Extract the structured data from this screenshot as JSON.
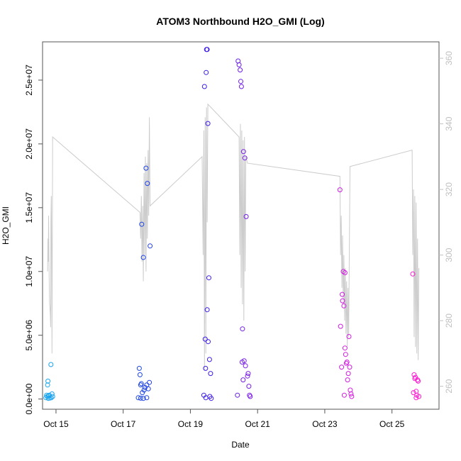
{
  "chart_data": {
    "type": "scatter",
    "title": "ATOM3 Northbound H2O_GMI (Log)",
    "xlabel": "Date",
    "ylabel": "H2O_GMI",
    "xlim": [
      14.6,
      26.4
    ],
    "ylim": [
      -800000.0,
      28000000.0
    ],
    "y2lim": [
      253,
      365
    ],
    "x_ticks": [
      {
        "value": 15,
        "label": "Oct 15"
      },
      {
        "value": 17,
        "label": "Oct 17"
      },
      {
        "value": 19,
        "label": "Oct 19"
      },
      {
        "value": 21,
        "label": "Oct 21"
      },
      {
        "value": 23,
        "label": "Oct 23"
      },
      {
        "value": 25,
        "label": "Oct 25"
      }
    ],
    "y_ticks": [
      {
        "value": 0,
        "label": "0.0e+00"
      },
      {
        "value": 5000000,
        "label": "5.0e+06"
      },
      {
        "value": 10000000,
        "label": "1.0e+07"
      },
      {
        "value": 15000000,
        "label": "1.5e+07"
      },
      {
        "value": 20000000,
        "label": "2.0e+07"
      },
      {
        "value": 25000000,
        "label": "2.5e+07"
      }
    ],
    "y2_ticks": [
      {
        "value": 260,
        "label": "260"
      },
      {
        "value": 280,
        "label": "280"
      },
      {
        "value": 300,
        "label": "300"
      },
      {
        "value": 320,
        "label": "320"
      },
      {
        "value": 340,
        "label": "340"
      },
      {
        "value": 360,
        "label": "360"
      }
    ],
    "grid": false,
    "colors": {
      "line": "#cccccc",
      "axis": "#555555",
      "right_axis": "#c0c0c0",
      "point_gradient": [
        "#1aa8f0",
        "#1a55e6",
        "#2b1ee8",
        "#9a1ee8",
        "#d01ee0",
        "#ff1ad0"
      ]
    },
    "series": [
      {
        "kind": "line",
        "axis": "right",
        "points": [
          [
            14.75,
            295
          ],
          [
            14.76,
            305
          ],
          [
            14.77,
            298
          ],
          [
            14.78,
            312
          ],
          [
            14.79,
            300
          ],
          [
            14.8,
            290
          ],
          [
            14.81,
            285
          ],
          [
            14.82,
            284
          ],
          [
            14.83,
            282
          ],
          [
            14.84,
            278
          ],
          [
            14.85,
            310
          ],
          [
            14.86,
            318
          ],
          [
            14.87,
            300
          ],
          [
            14.88,
            270
          ],
          [
            14.9,
            336
          ],
          [
            17.5,
            313
          ],
          [
            17.52,
            305
          ],
          [
            17.54,
            318
          ],
          [
            17.56,
            298
          ],
          [
            17.58,
            315
          ],
          [
            17.6,
            292
          ],
          [
            17.62,
            325
          ],
          [
            17.64,
            300
          ],
          [
            17.66,
            330
          ],
          [
            17.68,
            295
          ],
          [
            17.7,
            328
          ],
          [
            17.72,
            305
          ],
          [
            17.74,
            332
          ],
          [
            17.76,
            312
          ],
          [
            17.78,
            342
          ],
          [
            17.8,
            315
          ],
          [
            19.35,
            330
          ],
          [
            19.38,
            300
          ],
          [
            19.4,
            338
          ],
          [
            19.42,
            265
          ],
          [
            19.44,
            342
          ],
          [
            19.46,
            270
          ],
          [
            19.48,
            345
          ],
          [
            19.5,
            310
          ],
          [
            19.52,
            346
          ],
          [
            20.45,
            336
          ],
          [
            20.47,
            300
          ],
          [
            20.49,
            340
          ],
          [
            20.51,
            290
          ],
          [
            20.53,
            338
          ],
          [
            20.55,
            285
          ],
          [
            20.57,
            335
          ],
          [
            20.59,
            280
          ],
          [
            20.61,
            336
          ],
          [
            20.63,
            295
          ],
          [
            20.65,
            330
          ],
          [
            20.7,
            328
          ],
          [
            23.45,
            324
          ],
          [
            23.47,
            300
          ],
          [
            23.49,
            312
          ],
          [
            23.51,
            290
          ],
          [
            23.53,
            306
          ],
          [
            23.55,
            285
          ],
          [
            23.57,
            300
          ],
          [
            23.59,
            280
          ],
          [
            23.61,
            296
          ],
          [
            23.63,
            276
          ],
          [
            23.65,
            292
          ],
          [
            23.67,
            272
          ],
          [
            23.69,
            290
          ],
          [
            23.71,
            275
          ],
          [
            23.75,
            327
          ],
          [
            25.6,
            332
          ],
          [
            25.62,
            300
          ],
          [
            25.64,
            320
          ],
          [
            25.66,
            275
          ],
          [
            25.68,
            318
          ],
          [
            25.7,
            272
          ],
          [
            25.72,
            316
          ],
          [
            25.74,
            270
          ],
          [
            25.76,
            305
          ],
          [
            25.78,
            268
          ],
          [
            25.8,
            296
          ]
        ]
      },
      {
        "kind": "scatter",
        "axis": "left",
        "points": [
          [
            14.7,
            100000
          ],
          [
            14.72,
            300000
          ],
          [
            14.74,
            200000
          ],
          [
            14.75,
            1100000
          ],
          [
            14.76,
            1400000
          ],
          [
            14.77,
            50000
          ],
          [
            14.78,
            250000
          ],
          [
            14.8,
            300000
          ],
          [
            14.82,
            80000
          ],
          [
            14.85,
            2700000
          ],
          [
            14.86,
            100000
          ],
          [
            14.88,
            400000
          ],
          [
            14.9,
            200000
          ],
          [
            17.45,
            100000
          ],
          [
            17.48,
            2400000
          ],
          [
            17.5,
            1900000
          ],
          [
            17.52,
            1100000
          ],
          [
            17.54,
            1200000
          ],
          [
            17.55,
            13700000
          ],
          [
            17.57,
            500000
          ],
          [
            17.6,
            11100000
          ],
          [
            17.62,
            700000
          ],
          [
            17.65,
            900000
          ],
          [
            17.68,
            18100000
          ],
          [
            17.7,
            1100000
          ],
          [
            17.72,
            16900000
          ],
          [
            17.75,
            800000
          ],
          [
            17.78,
            1300000
          ],
          [
            17.8,
            12000000
          ],
          [
            17.52,
            70000
          ],
          [
            17.6,
            50000
          ],
          [
            17.7,
            100000
          ],
          [
            19.4,
            300000
          ],
          [
            19.42,
            24500000
          ],
          [
            19.44,
            4700000
          ],
          [
            19.45,
            2400000
          ],
          [
            19.46,
            100000
          ],
          [
            19.47,
            25600000
          ],
          [
            19.48,
            27400000
          ],
          [
            19.5,
            27400000
          ],
          [
            19.5,
            7000000
          ],
          [
            19.52,
            21600000
          ],
          [
            19.53,
            4500000
          ],
          [
            19.55,
            9500000
          ],
          [
            19.57,
            3100000
          ],
          [
            19.6,
            2000000
          ],
          [
            19.58,
            200000
          ],
          [
            19.62,
            50000
          ],
          [
            20.4,
            300000
          ],
          [
            20.42,
            26500000
          ],
          [
            20.45,
            26200000
          ],
          [
            20.48,
            25800000
          ],
          [
            20.5,
            24900000
          ],
          [
            20.52,
            24500000
          ],
          [
            20.54,
            2900000
          ],
          [
            20.55,
            5500000
          ],
          [
            20.57,
            1500000
          ],
          [
            20.58,
            19400000
          ],
          [
            20.6,
            3000000
          ],
          [
            20.62,
            18900000
          ],
          [
            20.64,
            2600000
          ],
          [
            20.66,
            14300000
          ],
          [
            20.7,
            1800000
          ],
          [
            20.72,
            2000000
          ],
          [
            20.74,
            1000000
          ],
          [
            20.76,
            300000
          ],
          [
            20.78,
            200000
          ],
          [
            23.45,
            16400000
          ],
          [
            23.47,
            5700000
          ],
          [
            23.5,
            2500000
          ],
          [
            23.52,
            8200000
          ],
          [
            23.53,
            7700000
          ],
          [
            23.55,
            10000000
          ],
          [
            23.57,
            7300000
          ],
          [
            23.6,
            4000000
          ],
          [
            23.62,
            3500000
          ],
          [
            23.64,
            2800000
          ],
          [
            23.66,
            2900000
          ],
          [
            23.68,
            1500000
          ],
          [
            23.7,
            2000000
          ],
          [
            23.72,
            4900000
          ],
          [
            23.74,
            2500000
          ],
          [
            23.76,
            700000
          ],
          [
            23.78,
            400000
          ],
          [
            23.8,
            200000
          ],
          [
            23.6,
            9900000
          ],
          [
            23.58,
            300000
          ],
          [
            25.62,
            9800000
          ],
          [
            25.64,
            500000
          ],
          [
            25.66,
            1900000
          ],
          [
            25.68,
            1600000
          ],
          [
            25.7,
            1700000
          ],
          [
            25.72,
            600000
          ],
          [
            25.74,
            300000
          ],
          [
            25.76,
            1500000
          ],
          [
            25.78,
            1400000
          ],
          [
            25.8,
            200000
          ],
          [
            25.72,
            100000
          ]
        ]
      }
    ]
  }
}
